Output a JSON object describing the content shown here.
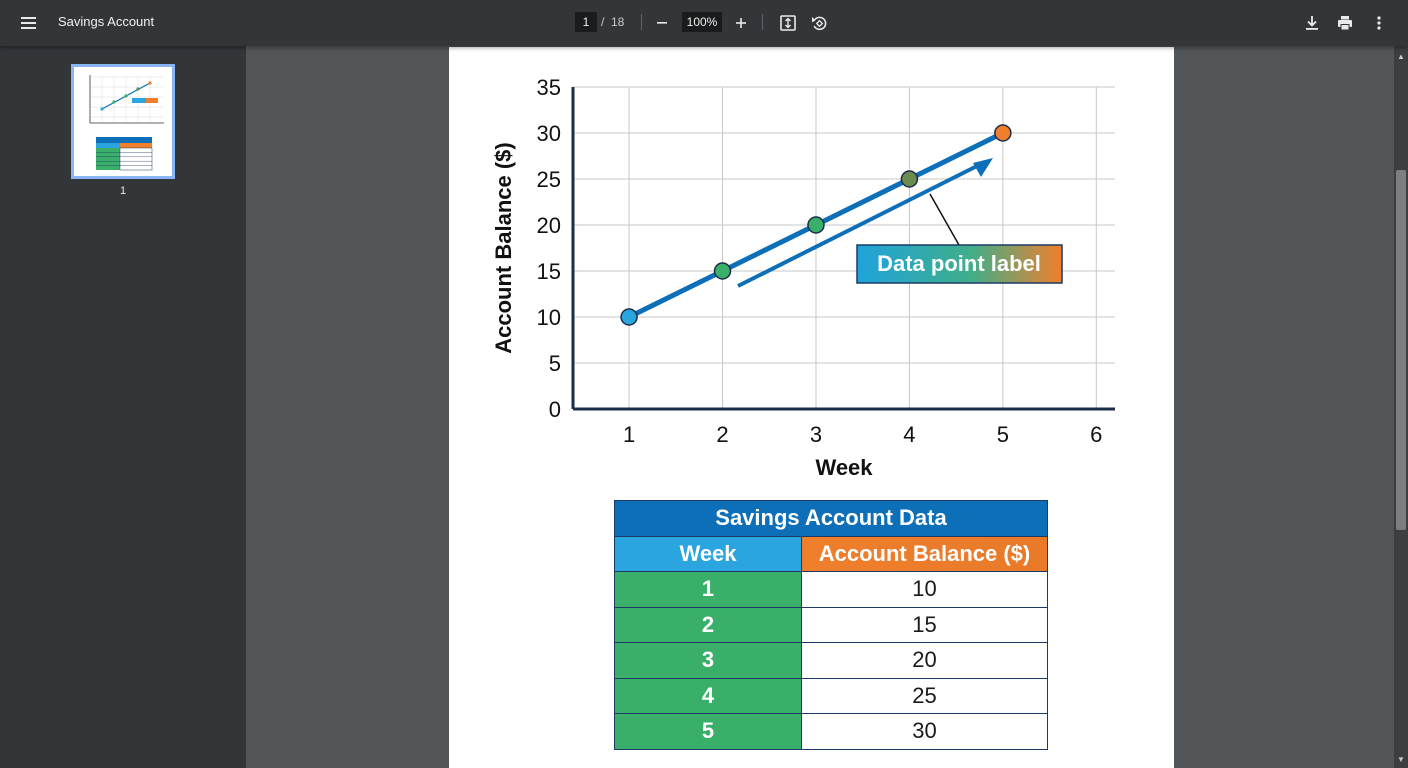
{
  "toolbar": {
    "title": "Savings Account",
    "current_page": "1",
    "page_separator": "/",
    "total_pages": "18",
    "zoom": "100%"
  },
  "sidebar": {
    "thumbnails": [
      {
        "label": "1"
      }
    ]
  },
  "icons": {
    "menu": "menu-icon",
    "zoom_out": "minus-icon",
    "zoom_in": "plus-icon",
    "fit": "fit-page-icon",
    "rotate": "rotate-icon",
    "download": "download-icon",
    "print": "print-icon",
    "more": "more-vertical-icon"
  },
  "chart_data": {
    "type": "line",
    "x": [
      1,
      2,
      3,
      4,
      5
    ],
    "series": [
      {
        "values": [
          10,
          15,
          20,
          25,
          30
        ]
      }
    ],
    "xlabel": "Week",
    "ylabel": "Account Balance ($)",
    "xlim": [
      0.4,
      6.2
    ],
    "ylim": [
      0,
      35
    ],
    "xticks": [
      1,
      2,
      3,
      4,
      5,
      6
    ],
    "yticks": [
      0,
      5,
      10,
      15,
      20,
      25,
      30,
      35
    ],
    "grid": true,
    "point_colors": [
      "#2aa5df",
      "#3aaf6a",
      "#3aaf6a",
      "#6b8a4e",
      "#f07f2c"
    ],
    "line_color": "#0d6fb8",
    "annotation": {
      "text": "Data point label"
    }
  },
  "table": {
    "title": "Savings Account Data",
    "headers": [
      "Week",
      "Account Balance ($)"
    ],
    "rows": [
      [
        "1",
        "10"
      ],
      [
        "2",
        "15"
      ],
      [
        "3",
        "20"
      ],
      [
        "4",
        "25"
      ],
      [
        "5",
        "30"
      ]
    ]
  }
}
